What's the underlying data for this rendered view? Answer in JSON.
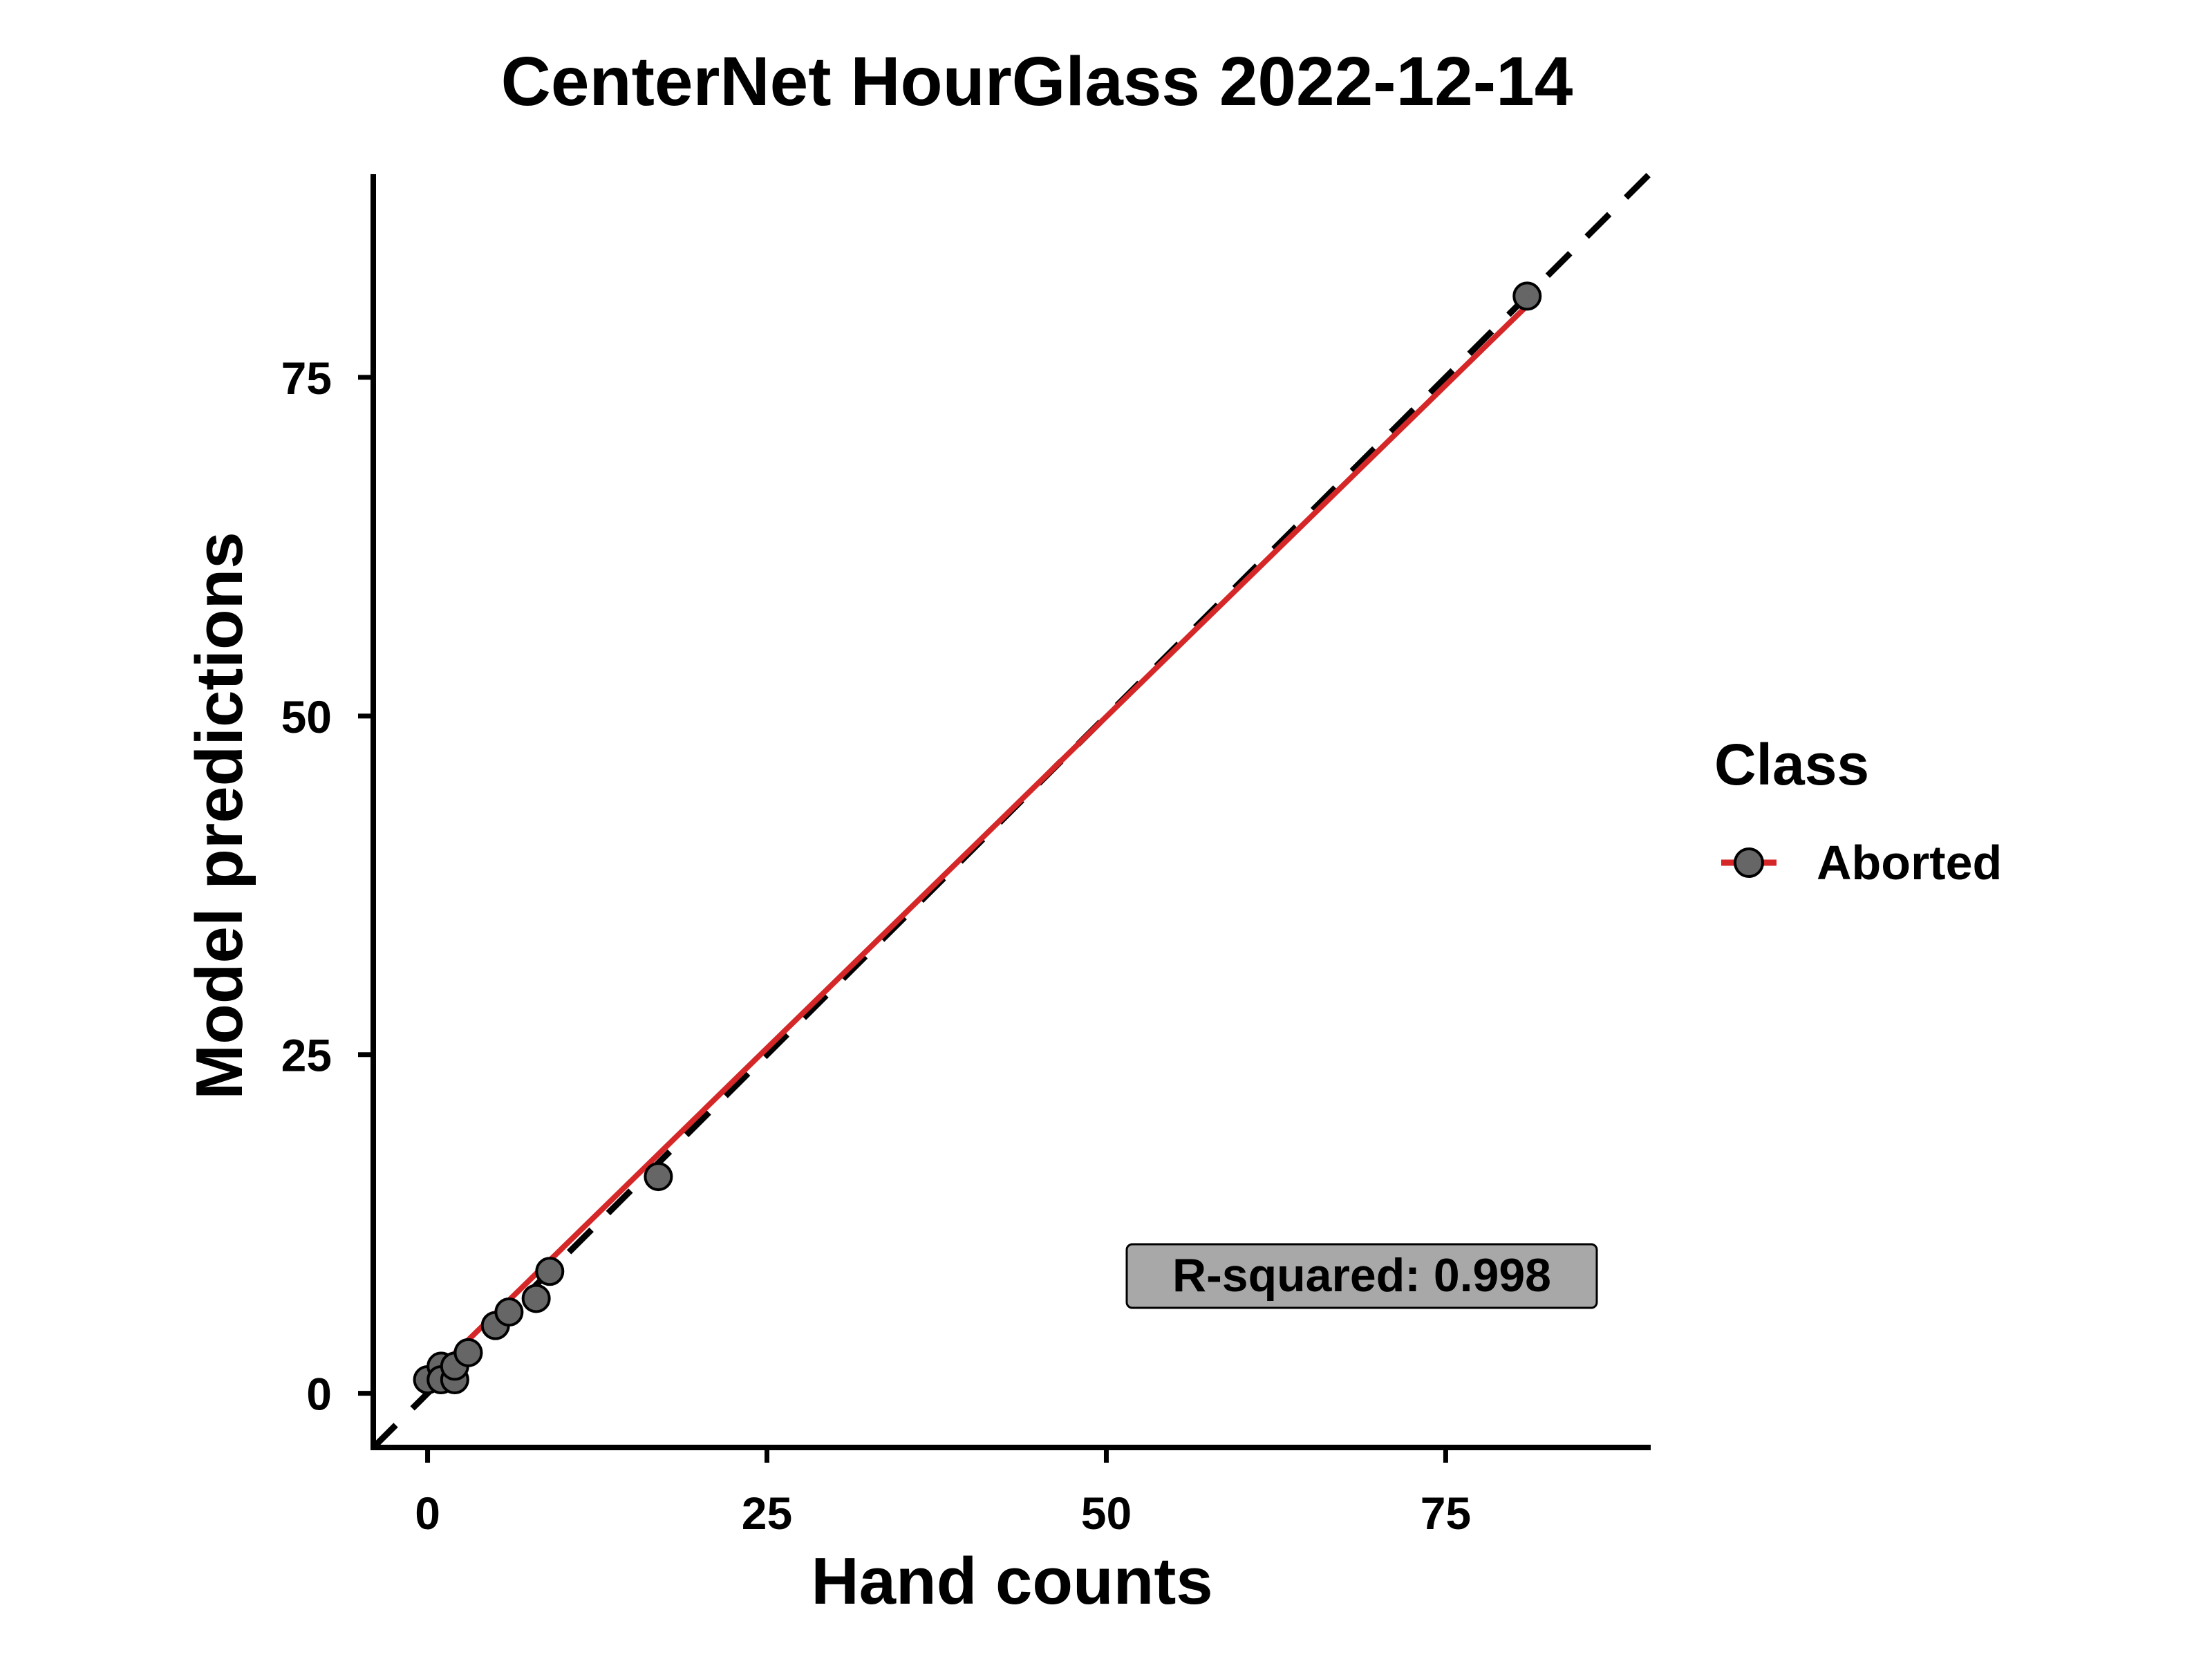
{
  "chart_data": {
    "type": "scatter",
    "title": "CenterNet HourGlass 2022-12-14",
    "xlabel": "Hand counts",
    "ylabel": "Model predictions",
    "xlim": [
      -4,
      90
    ],
    "ylim": [
      -4,
      90
    ],
    "x_ticks": [
      0,
      25,
      50,
      75
    ],
    "y_ticks": [
      0,
      25,
      50,
      75
    ],
    "grid": false,
    "legend": {
      "title": "Class",
      "position": "right",
      "entries": [
        "Aborted"
      ]
    },
    "series": [
      {
        "name": "Aborted",
        "color": "#d62728",
        "marker_fill": "#666666",
        "points": [
          {
            "x": 0,
            "y": 1
          },
          {
            "x": 1,
            "y": 2
          },
          {
            "x": 1,
            "y": 1
          },
          {
            "x": 2,
            "y": 1
          },
          {
            "x": 2,
            "y": 2
          },
          {
            "x": 3,
            "y": 3
          },
          {
            "x": 5,
            "y": 5
          },
          {
            "x": 6,
            "y": 6
          },
          {
            "x": 8,
            "y": 7
          },
          {
            "x": 9,
            "y": 9
          },
          {
            "x": 17,
            "y": 16
          },
          {
            "x": 81,
            "y": 81
          }
        ],
        "fit_line": {
          "x_start": 0,
          "y_start": 1,
          "x_end": 81,
          "y_end": 80.3
        }
      }
    ],
    "reference_line": {
      "slope": 1,
      "intercept": 0,
      "style": "dashed",
      "color": "#000000"
    },
    "annotation": "R-squared: 0.998"
  }
}
